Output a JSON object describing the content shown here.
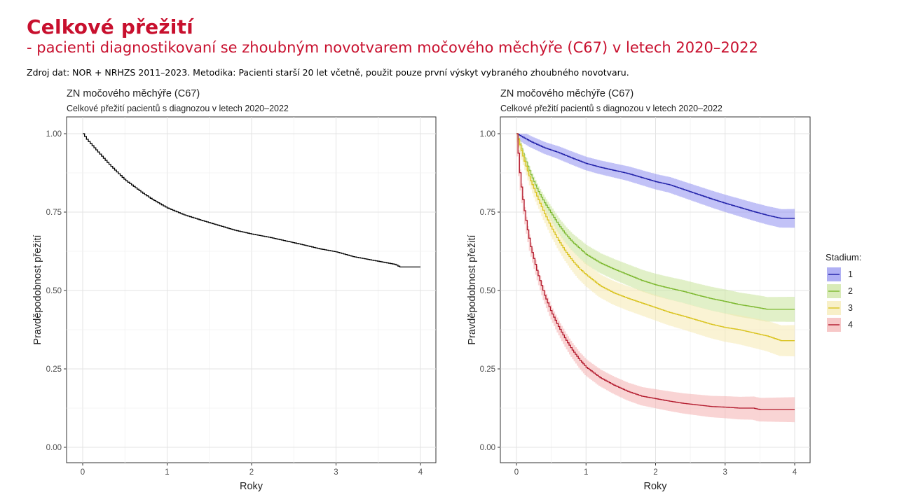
{
  "header": {
    "title": "Celkové přežití",
    "subtitle": "- pacienti diagnostikovaní se zhoubným novotvarem močového měchýře (C67) v letech 2020–2022",
    "source_note": "Zdroj dat: NOR + NRHZS 2011–2023. Metodika: Pacienti starší 20 let včetně, použit pouze první výskyt vybraného zhoubného novotvaru."
  },
  "colors": {
    "brand": "#c8102e",
    "stage_1": "#1f1fa8",
    "stage_2": "#7cb82f",
    "stage_3": "#d9c31e",
    "stage_4": "#b2182b"
  },
  "chart_data": [
    {
      "type": "line",
      "title": "ZN močového měchýře (C67)",
      "subtitle": "Celkové přežití pacientů s diagnozou v letech 2020–2022",
      "xlabel": "Roky",
      "ylabel": "Pravděpodobnost přežití",
      "xlim": [
        0,
        4
      ],
      "ylim": [
        0,
        1
      ],
      "xticks": [
        "0",
        "1",
        "2",
        "3",
        "4"
      ],
      "yticks": [
        "0.00",
        "0.25",
        "0.50",
        "0.75",
        "1.00"
      ],
      "grid": true,
      "series": [
        {
          "color": "#000000",
          "x": [
            0,
            0.05,
            0.1,
            0.2,
            0.3,
            0.4,
            0.5,
            0.6,
            0.7,
            0.8,
            0.9,
            1.0,
            1.2,
            1.4,
            1.6,
            1.8,
            2.0,
            2.2,
            2.4,
            2.6,
            2.8,
            3.0,
            3.2,
            3.4,
            3.6,
            3.7,
            3.75,
            4.0
          ],
          "y": [
            1.0,
            0.98,
            0.965,
            0.935,
            0.905,
            0.878,
            0.852,
            0.832,
            0.812,
            0.794,
            0.778,
            0.763,
            0.741,
            0.724,
            0.708,
            0.692,
            0.68,
            0.67,
            0.658,
            0.646,
            0.633,
            0.623,
            0.608,
            0.598,
            0.588,
            0.583,
            0.575,
            0.575
          ]
        }
      ]
    },
    {
      "type": "line",
      "title": "ZN močového měchýře (C67)",
      "subtitle": "Celkové přežití pacientů s diagnozou v letech 2020–2022",
      "xlabel": "Roky",
      "ylabel": "Pravděpodobnost přežití",
      "xlim": [
        0,
        4
      ],
      "ylim": [
        0,
        1
      ],
      "xticks": [
        "0",
        "1",
        "2",
        "3",
        "4"
      ],
      "yticks": [
        "0.00",
        "0.25",
        "0.50",
        "0.75",
        "1.00"
      ],
      "grid": true,
      "legend": {
        "title": "Stadium:",
        "position": "right"
      },
      "series": [
        {
          "name": "1",
          "color": "#1f1fa8",
          "band": "#8f8ff0",
          "x": [
            0,
            0.2,
            0.4,
            0.6,
            0.8,
            1.0,
            1.2,
            1.4,
            1.6,
            1.8,
            2.0,
            2.2,
            2.4,
            2.6,
            2.8,
            3.0,
            3.2,
            3.4,
            3.6,
            3.8,
            4.0
          ],
          "y": [
            1.0,
            0.975,
            0.955,
            0.94,
            0.922,
            0.905,
            0.893,
            0.883,
            0.873,
            0.86,
            0.847,
            0.837,
            0.822,
            0.807,
            0.792,
            0.778,
            0.765,
            0.752,
            0.74,
            0.73,
            0.73
          ],
          "ci": [
            0.016,
            0.02,
            0.022,
            0.024,
            0.026,
            0.028,
            0.03
          ]
        },
        {
          "name": "2",
          "color": "#7cb82f",
          "band": "#c9e39a",
          "x": [
            0,
            0.1,
            0.2,
            0.3,
            0.4,
            0.5,
            0.6,
            0.7,
            0.8,
            0.9,
            1.0,
            1.2,
            1.4,
            1.6,
            1.8,
            2.0,
            2.2,
            2.4,
            2.6,
            2.8,
            3.0,
            3.2,
            3.4,
            3.6,
            3.8,
            4.0
          ],
          "y": [
            1.0,
            0.93,
            0.87,
            0.82,
            0.78,
            0.745,
            0.71,
            0.68,
            0.655,
            0.635,
            0.615,
            0.588,
            0.568,
            0.55,
            0.532,
            0.518,
            0.507,
            0.497,
            0.485,
            0.474,
            0.465,
            0.455,
            0.448,
            0.44,
            0.44,
            0.44
          ],
          "ci": [
            0.01,
            0.03,
            0.035,
            0.038,
            0.04
          ]
        },
        {
          "name": "3",
          "color": "#d9c31e",
          "band": "#f5eab0",
          "x": [
            0,
            0.1,
            0.2,
            0.3,
            0.4,
            0.5,
            0.6,
            0.7,
            0.8,
            0.9,
            1.0,
            1.2,
            1.4,
            1.6,
            1.8,
            2.0,
            2.2,
            2.4,
            2.6,
            2.8,
            3.0,
            3.2,
            3.4,
            3.6,
            3.8,
            4.0
          ],
          "y": [
            1.0,
            0.92,
            0.85,
            0.795,
            0.745,
            0.7,
            0.66,
            0.625,
            0.595,
            0.57,
            0.55,
            0.515,
            0.492,
            0.475,
            0.46,
            0.445,
            0.43,
            0.418,
            0.405,
            0.392,
            0.382,
            0.375,
            0.365,
            0.355,
            0.34,
            0.34
          ],
          "ci": [
            0.01,
            0.035,
            0.04,
            0.045,
            0.05
          ]
        },
        {
          "name": "4",
          "color": "#b2182b",
          "band": "#f4b0b0",
          "x": [
            0,
            0.05,
            0.1,
            0.15,
            0.2,
            0.3,
            0.4,
            0.5,
            0.6,
            0.7,
            0.8,
            0.9,
            1.0,
            1.2,
            1.4,
            1.6,
            1.8,
            2.0,
            2.2,
            2.4,
            2.6,
            2.8,
            3.0,
            3.2,
            3.4,
            3.5,
            4.0
          ],
          "y": [
            1.0,
            0.86,
            0.77,
            0.7,
            0.64,
            0.555,
            0.485,
            0.43,
            0.385,
            0.345,
            0.31,
            0.28,
            0.255,
            0.222,
            0.198,
            0.178,
            0.163,
            0.155,
            0.147,
            0.14,
            0.135,
            0.13,
            0.128,
            0.125,
            0.125,
            0.12,
            0.12
          ],
          "ci": [
            0.01,
            0.025,
            0.03,
            0.035,
            0.04
          ]
        }
      ]
    }
  ]
}
